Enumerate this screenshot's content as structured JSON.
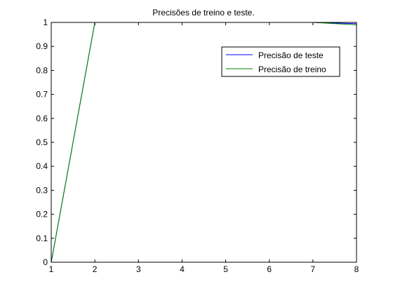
{
  "chart_data": {
    "type": "line",
    "title": "Precisões de treino e teste.",
    "xlabel": "",
    "ylabel": "",
    "xlim": [
      1,
      8
    ],
    "ylim": [
      0,
      1
    ],
    "x_ticks": [
      1,
      2,
      3,
      4,
      5,
      6,
      7,
      8
    ],
    "y_ticks": [
      0,
      0.1,
      0.2,
      0.3,
      0.4,
      0.5,
      0.6,
      0.7,
      0.8,
      0.9,
      1
    ],
    "x_tick_labels": [
      "1",
      "2",
      "3",
      "4",
      "5",
      "6",
      "7",
      "8"
    ],
    "y_tick_labels": [
      "0",
      "0.1",
      "0.2",
      "0.3",
      "0.4",
      "0.5",
      "0.6",
      "0.7",
      "0.8",
      "0.9",
      "1"
    ],
    "grid": false,
    "legend_position": "top-right",
    "series": [
      {
        "name": "Precisão de teste",
        "color": "#0000ff",
        "x": [
          1,
          2,
          3,
          4,
          5,
          6,
          7,
          8
        ],
        "y": [
          0,
          1,
          1,
          1,
          1,
          1,
          1,
          0.995
        ]
      },
      {
        "name": "Precisão de treino",
        "color": "#008000",
        "x": [
          1,
          2,
          3,
          4,
          5,
          6,
          7,
          8
        ],
        "y": [
          0,
          1,
          1,
          1,
          1,
          1,
          1,
          0.99
        ]
      }
    ]
  }
}
